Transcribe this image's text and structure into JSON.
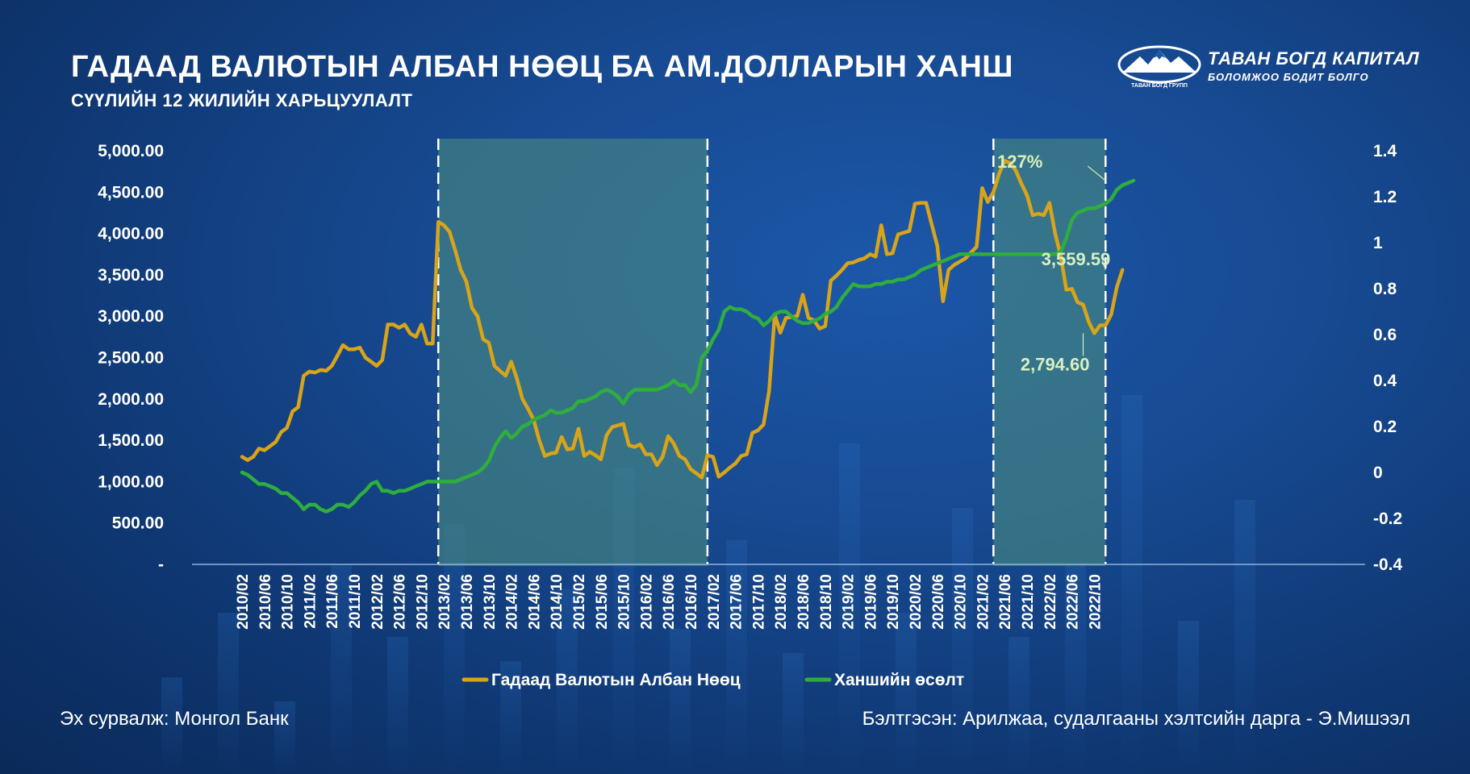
{
  "header": {
    "title": "ГАДААД ВАЛЮТЫН АЛБАН НӨӨЦ БА АМ.ДОЛЛАРЫН ХАНШ",
    "subtitle": "СҮҮЛИЙН 12 ЖИЛИЙН ХАРЬЦУУЛАЛТ"
  },
  "logo": {
    "name": "ТАВАН БОГД КАПИТАЛ",
    "tagline": "БОЛОМЖОО БОДИТ БОЛГО",
    "mark_caption": "ТАВАН БОГД ГРУПП",
    "icon": "mountain-logo-icon"
  },
  "footer": {
    "source": "Эх сурвалж: Монгол Банк",
    "author": "Бэлтгэсэн: Арилжаа, судалгааны хэлтсийн дарга -   Э.Мишээл"
  },
  "colors": {
    "reserves": "#d9a418",
    "exchange_growth": "#2fae3e",
    "shade": "#4a8c80",
    "annotation": "#d8f0c0"
  },
  "chart_data": {
    "type": "line",
    "x_start": "2010/02",
    "x_tick_labels": [
      "2010/02",
      "2010/06",
      "2010/10",
      "2011/02",
      "2011/06",
      "2011/10",
      "2012/02",
      "2012/06",
      "2012/10",
      "2013/02",
      "2013/06",
      "2013/10",
      "2014/02",
      "2014/06",
      "2014/10",
      "2015/02",
      "2015/06",
      "2015/10",
      "2016/02",
      "2016/06",
      "2016/10",
      "2017/02",
      "2017/06",
      "2017/10",
      "2018/02",
      "2018/06",
      "2018/10",
      "2019/02",
      "2019/06",
      "2019/10",
      "2020/02",
      "2020/06",
      "2020/10",
      "2021/02",
      "2021/06",
      "2021/10",
      "2022/02",
      "2022/06",
      "2022/10"
    ],
    "y_left": {
      "ticks": [
        0,
        500,
        1000,
        1500,
        2000,
        2500,
        3000,
        3500,
        4000,
        4500,
        5000
      ],
      "tick_labels": [
        "-",
        "500.00",
        "1,000.00",
        "1,500.00",
        "2,000.00",
        "2,500.00",
        "3,000.00",
        "3,500.00",
        "4,000.00",
        "4,500.00",
        "5,000.00"
      ],
      "range": [
        0,
        5000
      ]
    },
    "y_right": {
      "ticks": [
        -0.4,
        -0.2,
        0,
        0.2,
        0.4,
        0.6,
        0.8,
        1,
        1.2,
        1.4
      ],
      "tick_labels": [
        "-0.4",
        "-0.2",
        "0",
        "0.2",
        "0.4",
        "0.6",
        "0.8",
        "1",
        "1.2",
        "1.4"
      ],
      "range": [
        -0.4,
        1.4
      ]
    },
    "shaded_periods": [
      {
        "from": "2013/01",
        "to": "2017/01"
      },
      {
        "from": "2021/04",
        "to": "2022/12"
      }
    ],
    "series": [
      {
        "name": "Гадаад Валютын Албан Нөөц",
        "axis": "left",
        "color": "#d9a418",
        "values": [
          1300,
          1260,
          1300,
          1400,
          1380,
          1430,
          1480,
          1600,
          1650,
          1850,
          1900,
          2280,
          2330,
          2320,
          2350,
          2340,
          2400,
          2520,
          2650,
          2600,
          2600,
          2620,
          2500,
          2450,
          2400,
          2470,
          2900,
          2900,
          2860,
          2900,
          2790,
          2750,
          2900,
          2670,
          2670,
          4140,
          4100,
          4020,
          3800,
          3560,
          3420,
          3100,
          3000,
          2720,
          2680,
          2400,
          2340,
          2280,
          2450,
          2250,
          2000,
          1880,
          1750,
          1500,
          1310,
          1340,
          1350,
          1540,
          1390,
          1400,
          1640,
          1310,
          1360,
          1320,
          1270,
          1560,
          1660,
          1680,
          1700,
          1440,
          1420,
          1450,
          1330,
          1330,
          1200,
          1300,
          1550,
          1460,
          1310,
          1270,
          1150,
          1100,
          1050,
          1320,
          1300,
          1060,
          1110,
          1170,
          1220,
          1310,
          1330,
          1590,
          1620,
          1690,
          2100,
          3020,
          2800,
          2980,
          2990,
          3000,
          3260,
          2980,
          2950,
          2850,
          2880,
          3430,
          3490,
          3560,
          3640,
          3650,
          3680,
          3700,
          3750,
          3720,
          4100,
          3750,
          3760,
          3990,
          4010,
          4030,
          4360,
          4370,
          4370,
          4110,
          3850,
          3180,
          3560,
          3620,
          3660,
          3700,
          3770,
          3840,
          4550,
          4380,
          4500,
          4720,
          4880,
          4850,
          4760,
          4600,
          4460,
          4220,
          4240,
          4220,
          4370,
          4000,
          3730,
          3320,
          3330,
          3170,
          3140,
          2930,
          2794.6,
          2890,
          2890,
          3020,
          3350,
          3559.59
        ]
      },
      {
        "name": "Ханшийн өсөлт",
        "axis": "right",
        "color": "#2fae3e",
        "values": [
          0,
          -0.01,
          -0.03,
          -0.05,
          -0.05,
          -0.06,
          -0.07,
          -0.09,
          -0.09,
          -0.11,
          -0.13,
          -0.16,
          -0.14,
          -0.14,
          -0.16,
          -0.17,
          -0.16,
          -0.14,
          -0.14,
          -0.15,
          -0.13,
          -0.1,
          -0.08,
          -0.05,
          -0.04,
          -0.08,
          -0.08,
          -0.09,
          -0.08,
          -0.08,
          -0.07,
          -0.06,
          -0.05,
          -0.04,
          -0.04,
          -0.04,
          -0.04,
          -0.04,
          -0.04,
          -0.03,
          -0.02,
          -0.01,
          0,
          0.02,
          0.05,
          0.11,
          0.15,
          0.18,
          0.15,
          0.17,
          0.2,
          0.21,
          0.23,
          0.24,
          0.25,
          0.27,
          0.26,
          0.26,
          0.27,
          0.28,
          0.31,
          0.31,
          0.32,
          0.33,
          0.35,
          0.36,
          0.35,
          0.33,
          0.3,
          0.34,
          0.36,
          0.36,
          0.36,
          0.36,
          0.36,
          0.37,
          0.38,
          0.4,
          0.38,
          0.38,
          0.35,
          0.38,
          0.5,
          0.53,
          0.58,
          0.62,
          0.7,
          0.72,
          0.71,
          0.71,
          0.7,
          0.68,
          0.67,
          0.64,
          0.66,
          0.69,
          0.7,
          0.7,
          0.68,
          0.66,
          0.65,
          0.65,
          0.66,
          0.67,
          0.69,
          0.7,
          0.72,
          0.76,
          0.79,
          0.82,
          0.81,
          0.81,
          0.81,
          0.82,
          0.82,
          0.83,
          0.83,
          0.84,
          0.84,
          0.85,
          0.86,
          0.88,
          0.89,
          0.9,
          0.91,
          0.92,
          0.93,
          0.94,
          0.95,
          0.95,
          0.95,
          0.95,
          0.95,
          0.95,
          0.95,
          0.95,
          0.95,
          0.95,
          0.95,
          0.95,
          0.95,
          0.95,
          0.95,
          0.95,
          0.95,
          0.95,
          0.96,
          1.02,
          1.1,
          1.13,
          1.14,
          1.15,
          1.15,
          1.16,
          1.17,
          1.19,
          1.23,
          1.25,
          1.26,
          1.27
        ]
      }
    ],
    "annotations": [
      {
        "text": "127%",
        "series": "Ханшийн өсөлт",
        "x": "2022/12",
        "value": 1.27
      },
      {
        "text": "3,559.59",
        "series": "Гадаад Валютын Албан Нөөц",
        "x": "2022/12",
        "value": 3559.59
      },
      {
        "text": "2,794.60",
        "series": "Гадаад Валютын Албан Нөөц",
        "x": "2022/08",
        "value": 2794.6
      }
    ],
    "legend": "bottom-center",
    "grid": false
  }
}
